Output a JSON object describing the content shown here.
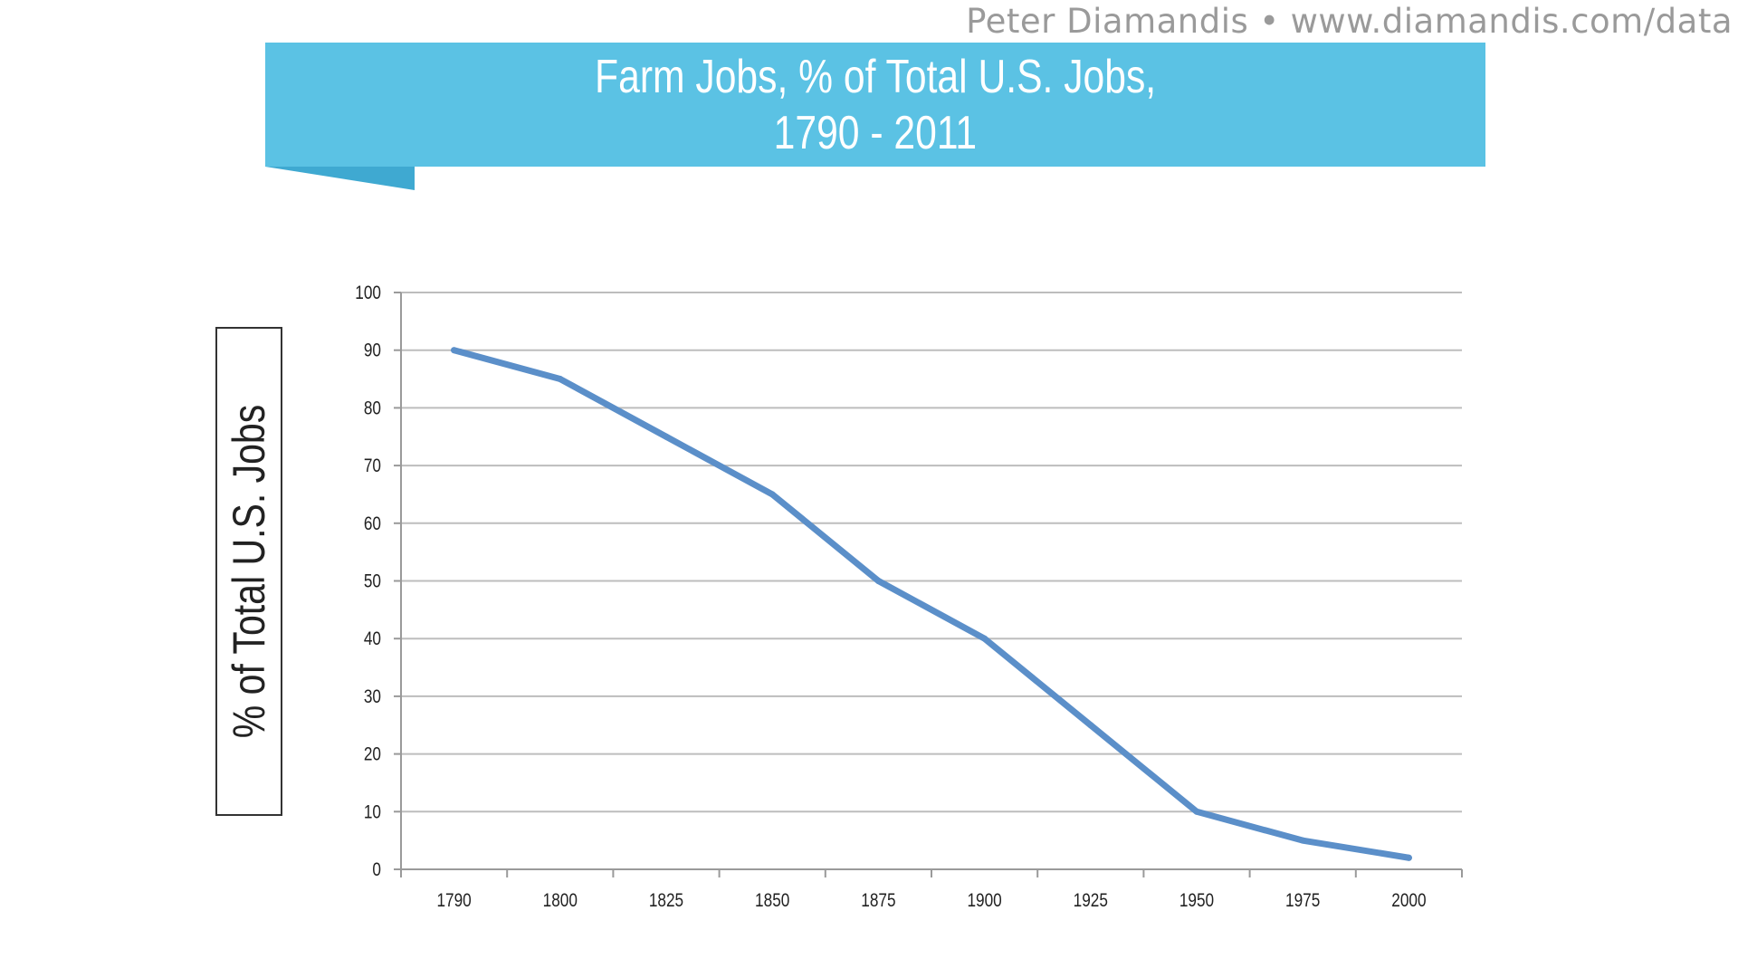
{
  "attribution": {
    "author": "Peter Diamandis",
    "separator": "•",
    "url": "www.diamandis.com/data"
  },
  "chart_data": {
    "type": "line",
    "title": "Farm Jobs, % of Total U.S. Jobs,",
    "subtitle": "1790 - 2011",
    "xlabel": "",
    "ylabel": "% of Total U.S. Jobs",
    "categories": [
      "1790",
      "1800",
      "1825",
      "1850",
      "1875",
      "1900",
      "1925",
      "1950",
      "1975",
      "2000"
    ],
    "series": [
      {
        "values": [
          90,
          85,
          75,
          65,
          50,
          40,
          25,
          10,
          5,
          2
        ]
      }
    ],
    "ylim": [
      0,
      100
    ],
    "yticks": [
      0,
      10,
      20,
      30,
      40,
      50,
      60,
      70,
      80,
      90,
      100
    ],
    "grid": true,
    "legend": "none",
    "line_color": "#5b8fc9",
    "banner_color": "#5bc2e4"
  }
}
